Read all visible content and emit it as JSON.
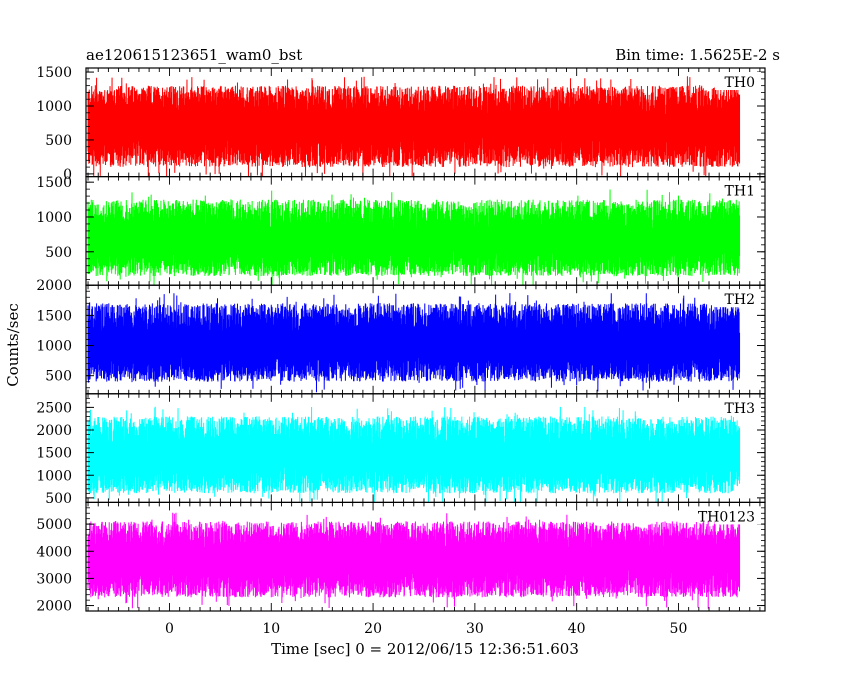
{
  "header": {
    "left_title": "ae120615123651_wam0_bst",
    "right_title": "Bin time: 1.5625E-2 s"
  },
  "axes": {
    "xlabel": "Time [sec] 0 = 2012/06/15 12:36:51.603",
    "ylabel": "Counts/sec"
  },
  "chart_data": {
    "type": "line",
    "title": "ae120615123651_wam0_bst",
    "subtitle": "Bin time: 1.5625E-2 s",
    "xlabel": "Time [sec] 0 = 2012/06/15 12:36:51.603",
    "ylabel": "Counts/sec",
    "xlim": [
      -8.2,
      58.5
    ],
    "x_data_range": [
      -8,
      56
    ],
    "xticks": [
      0,
      10,
      20,
      30,
      40,
      50
    ],
    "grid": false,
    "legend": "none",
    "panels": [
      {
        "name": "TH0",
        "color": "#ff0000",
        "ylim": [
          -40,
          1560
        ],
        "yticks": [
          0,
          500,
          1000,
          1500
        ],
        "typical_range": [
          100,
          1300
        ],
        "mean": 700
      },
      {
        "name": "TH1",
        "color": "#00ff00",
        "ylim": [
          20,
          1580
        ],
        "yticks": [
          500,
          1000,
          1500
        ],
        "typical_range": [
          150,
          1250
        ],
        "mean": 650
      },
      {
        "name": "TH2",
        "color": "#0000ff",
        "ylim": [
          200,
          2000
        ],
        "yticks": [
          500,
          1000,
          1500,
          2000
        ],
        "typical_range": [
          400,
          1700
        ],
        "mean": 1000
      },
      {
        "name": "TH3",
        "color": "#00ffff",
        "ylim": [
          400,
          2800
        ],
        "yticks": [
          500,
          1000,
          1500,
          2000,
          2500
        ],
        "typical_range": [
          600,
          2300
        ],
        "mean": 1400
      },
      {
        "name": "TH0123",
        "color": "#ff00ff",
        "ylim": [
          1800,
          5800
        ],
        "yticks": [
          2000,
          3000,
          4000,
          5000
        ],
        "typical_range": [
          2300,
          5100
        ],
        "mean": 3700
      }
    ]
  }
}
